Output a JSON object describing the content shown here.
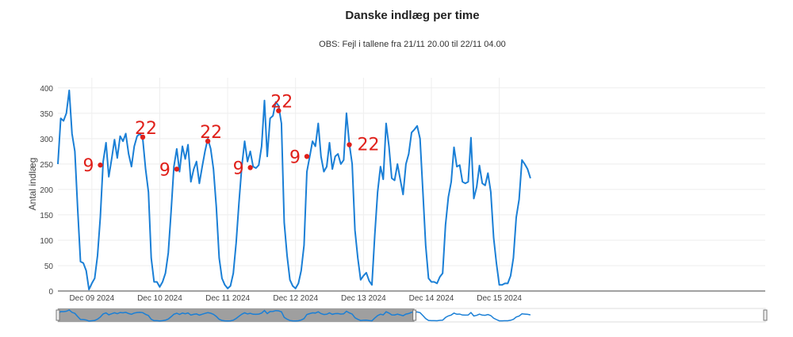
{
  "chart_data": {
    "type": "line",
    "title": "Danske indlæg per time",
    "subtitle": "OBS: Fejl i tallene fra 21/11 20.00 til 22/11 04.00",
    "ylabel": "Antal indlæg",
    "xlabel": "",
    "ylim": [
      0,
      420
    ],
    "yticks": [
      0,
      50,
      100,
      150,
      200,
      250,
      300,
      350,
      400
    ],
    "xlim": [
      -12,
      238
    ],
    "xticks": [
      {
        "pos": 0,
        "label": "Dec 09 2024"
      },
      {
        "pos": 24,
        "label": "Dec 10 2024"
      },
      {
        "pos": 48,
        "label": "Dec 11 2024"
      },
      {
        "pos": 72,
        "label": "Dec 12 2024"
      },
      {
        "pos": 96,
        "label": "Dec 13 2024"
      },
      {
        "pos": 120,
        "label": "Dec 14 2024"
      },
      {
        "pos": 144,
        "label": "Dec 15 2024"
      }
    ],
    "series": [
      {
        "name": "Antal indlæg",
        "color": "#1a7fd6",
        "points": [
          [
            -12,
            250
          ],
          [
            -11,
            340
          ],
          [
            -10,
            335
          ],
          [
            -9,
            350
          ],
          [
            -8,
            395
          ],
          [
            -7,
            310
          ],
          [
            -6,
            275
          ],
          [
            -5,
            160
          ],
          [
            -4,
            58
          ],
          [
            -3,
            55
          ],
          [
            -2,
            40
          ],
          [
            -1,
            3
          ],
          [
            0,
            15
          ],
          [
            1,
            25
          ],
          [
            2,
            70
          ],
          [
            3,
            145
          ],
          [
            4,
            255
          ],
          [
            5,
            292
          ],
          [
            6,
            225
          ],
          [
            7,
            260
          ],
          [
            8,
            298
          ],
          [
            9,
            262
          ],
          [
            10,
            305
          ],
          [
            11,
            295
          ],
          [
            12,
            310
          ],
          [
            13,
            270
          ],
          [
            14,
            245
          ],
          [
            15,
            285
          ],
          [
            16,
            305
          ],
          [
            17,
            310
          ],
          [
            18,
            300
          ],
          [
            19,
            240
          ],
          [
            20,
            195
          ],
          [
            21,
            65
          ],
          [
            22,
            18
          ],
          [
            23,
            18
          ],
          [
            24,
            8
          ],
          [
            25,
            18
          ],
          [
            26,
            35
          ],
          [
            27,
            75
          ],
          [
            28,
            155
          ],
          [
            29,
            245
          ],
          [
            30,
            280
          ],
          [
            31,
            235
          ],
          [
            32,
            285
          ],
          [
            33,
            260
          ],
          [
            34,
            288
          ],
          [
            35,
            215
          ],
          [
            36,
            240
          ],
          [
            37,
            255
          ],
          [
            38,
            212
          ],
          [
            39,
            245
          ],
          [
            40,
            275
          ],
          [
            41,
            300
          ],
          [
            42,
            280
          ],
          [
            43,
            240
          ],
          [
            44,
            165
          ],
          [
            45,
            65
          ],
          [
            46,
            25
          ],
          [
            47,
            12
          ],
          [
            48,
            5
          ],
          [
            49,
            10
          ],
          [
            50,
            35
          ],
          [
            51,
            95
          ],
          [
            52,
            175
          ],
          [
            53,
            245
          ],
          [
            54,
            295
          ],
          [
            55,
            255
          ],
          [
            56,
            275
          ],
          [
            57,
            245
          ],
          [
            58,
            242
          ],
          [
            59,
            248
          ],
          [
            60,
            285
          ],
          [
            61,
            375
          ],
          [
            62,
            265
          ],
          [
            63,
            340
          ],
          [
            64,
            345
          ],
          [
            65,
            372
          ],
          [
            66,
            365
          ],
          [
            67,
            330
          ],
          [
            68,
            135
          ],
          [
            69,
            70
          ],
          [
            70,
            22
          ],
          [
            71,
            10
          ],
          [
            72,
            5
          ],
          [
            73,
            15
          ],
          [
            74,
            40
          ],
          [
            75,
            90
          ],
          [
            76,
            235
          ],
          [
            77,
            265
          ],
          [
            78,
            295
          ],
          [
            79,
            285
          ],
          [
            80,
            330
          ],
          [
            81,
            265
          ],
          [
            82,
            235
          ],
          [
            83,
            245
          ],
          [
            84,
            292
          ],
          [
            85,
            240
          ],
          [
            86,
            265
          ],
          [
            87,
            270
          ],
          [
            88,
            250
          ],
          [
            89,
            258
          ],
          [
            90,
            350
          ],
          [
            91,
            290
          ],
          [
            92,
            250
          ],
          [
            93,
            120
          ],
          [
            94,
            65
          ],
          [
            95,
            22
          ],
          [
            96,
            30
          ],
          [
            97,
            36
          ],
          [
            98,
            20
          ],
          [
            99,
            12
          ],
          [
            100,
            110
          ],
          [
            101,
            195
          ],
          [
            102,
            245
          ],
          [
            103,
            220
          ],
          [
            104,
            330
          ],
          [
            105,
            285
          ],
          [
            106,
            222
          ],
          [
            107,
            218
          ],
          [
            108,
            250
          ],
          [
            109,
            220
          ],
          [
            110,
            190
          ],
          [
            111,
            250
          ],
          [
            112,
            270
          ],
          [
            113,
            312
          ],
          [
            114,
            318
          ],
          [
            115,
            325
          ],
          [
            116,
            300
          ],
          [
            117,
            195
          ],
          [
            118,
            90
          ],
          [
            119,
            25
          ],
          [
            120,
            18
          ],
          [
            121,
            18
          ],
          [
            122,
            15
          ],
          [
            123,
            28
          ],
          [
            124,
            35
          ],
          [
            125,
            130
          ],
          [
            126,
            185
          ],
          [
            127,
            215
          ],
          [
            128,
            283
          ],
          [
            129,
            245
          ],
          [
            130,
            248
          ],
          [
            131,
            215
          ],
          [
            132,
            212
          ],
          [
            133,
            215
          ],
          [
            134,
            302
          ],
          [
            135,
            182
          ],
          [
            136,
            205
          ],
          [
            137,
            247
          ],
          [
            138,
            212
          ],
          [
            139,
            208
          ],
          [
            140,
            232
          ],
          [
            141,
            195
          ],
          [
            142,
            105
          ],
          [
            143,
            55
          ],
          [
            144,
            12
          ],
          [
            145,
            12
          ],
          [
            146,
            15
          ],
          [
            147,
            15
          ],
          [
            148,
            30
          ],
          [
            149,
            65
          ],
          [
            150,
            145
          ],
          [
            151,
            180
          ],
          [
            152,
            258
          ],
          [
            153,
            250
          ],
          [
            154,
            240
          ],
          [
            155,
            222
          ]
        ]
      }
    ],
    "annotations": [
      {
        "text": "9",
        "x": 3,
        "y": 248
      },
      {
        "text": "22",
        "x": 18,
        "y": 303
      },
      {
        "text": "9",
        "x": 30,
        "y": 240
      },
      {
        "text": "22",
        "x": 41,
        "y": 295
      },
      {
        "text": "9",
        "x": 56,
        "y": 243
      },
      {
        "text": "22",
        "x": 66,
        "y": 355
      },
      {
        "text": "9",
        "x": 76,
        "y": 265
      },
      {
        "text": "22",
        "x": 91,
        "y": 288
      }
    ],
    "rangeslider": {
      "selected_from": -12,
      "selected_to": 114
    }
  }
}
